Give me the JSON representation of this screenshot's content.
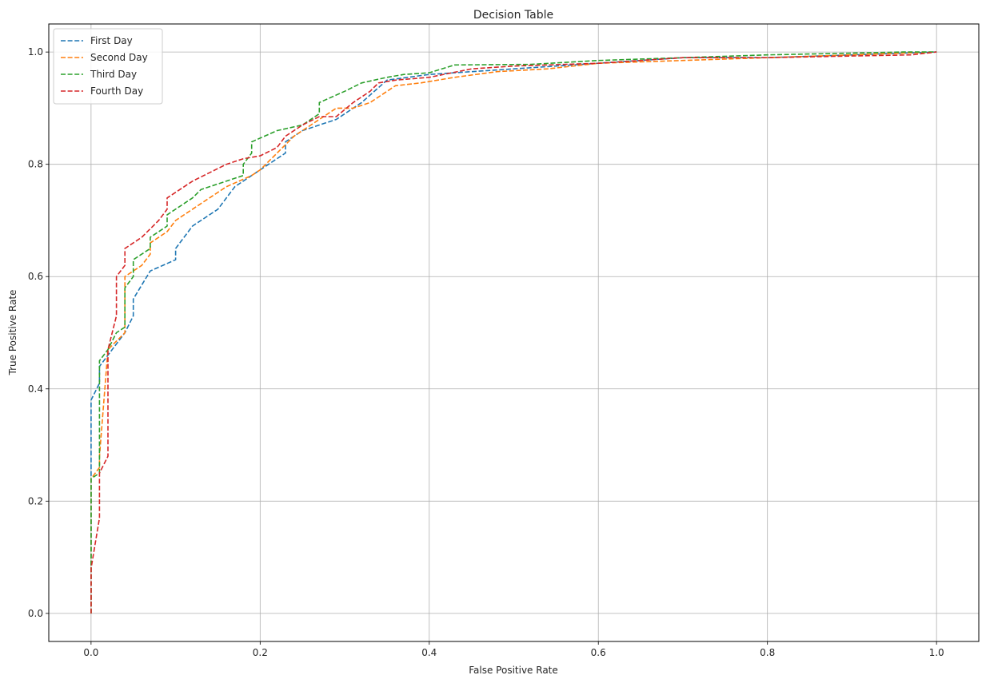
{
  "chart_data": {
    "type": "line",
    "title": "Decision Table",
    "xlabel": "False Positive Rate",
    "ylabel": "True Positive Rate",
    "xlim": [
      -0.05,
      1.05
    ],
    "ylim": [
      -0.05,
      1.05
    ],
    "x_ticks": [
      {
        "value": 0.0,
        "label": "0.0"
      },
      {
        "value": 0.2,
        "label": "0.2"
      },
      {
        "value": 0.4,
        "label": "0.4"
      },
      {
        "value": 0.6,
        "label": "0.6"
      },
      {
        "value": 0.8,
        "label": "0.8"
      },
      {
        "value": 1.0,
        "label": "1.0"
      }
    ],
    "y_ticks": [
      {
        "value": 0.0,
        "label": "0.0"
      },
      {
        "value": 0.2,
        "label": "0.2"
      },
      {
        "value": 0.4,
        "label": "0.4"
      },
      {
        "value": 0.6,
        "label": "0.6"
      },
      {
        "value": 0.8,
        "label": "0.8"
      },
      {
        "value": 1.0,
        "label": "1.0"
      }
    ],
    "grid": true,
    "line_style": "dashed",
    "legend_position": "top-left",
    "series": [
      {
        "name": "First Day",
        "color": "#1f77b4",
        "points": [
          [
            0.0,
            0.0
          ],
          [
            0.0,
            0.38
          ],
          [
            0.01,
            0.41
          ],
          [
            0.01,
            0.44
          ],
          [
            0.02,
            0.46
          ],
          [
            0.04,
            0.5
          ],
          [
            0.05,
            0.53
          ],
          [
            0.05,
            0.56
          ],
          [
            0.07,
            0.61
          ],
          [
            0.1,
            0.63
          ],
          [
            0.1,
            0.65
          ],
          [
            0.11,
            0.67
          ],
          [
            0.12,
            0.69
          ],
          [
            0.15,
            0.72
          ],
          [
            0.17,
            0.76
          ],
          [
            0.19,
            0.78
          ],
          [
            0.2,
            0.79
          ],
          [
            0.23,
            0.82
          ],
          [
            0.23,
            0.84
          ],
          [
            0.25,
            0.86
          ],
          [
            0.27,
            0.87
          ],
          [
            0.29,
            0.88
          ],
          [
            0.32,
            0.91
          ],
          [
            0.35,
            0.95
          ],
          [
            0.4,
            0.96
          ],
          [
            0.5,
            0.97
          ],
          [
            0.6,
            0.98
          ],
          [
            0.7,
            0.99
          ],
          [
            0.8,
            0.99
          ],
          [
            0.9,
            0.995
          ],
          [
            1.0,
            1.0
          ]
        ]
      },
      {
        "name": "Second Day",
        "color": "#ff7f0e",
        "points": [
          [
            0.0,
            0.0
          ],
          [
            0.0,
            0.24
          ],
          [
            0.01,
            0.26
          ],
          [
            0.01,
            0.28
          ],
          [
            0.02,
            0.47
          ],
          [
            0.04,
            0.5
          ],
          [
            0.04,
            0.6
          ],
          [
            0.06,
            0.62
          ],
          [
            0.07,
            0.64
          ],
          [
            0.07,
            0.66
          ],
          [
            0.09,
            0.68
          ],
          [
            0.1,
            0.7
          ],
          [
            0.12,
            0.72
          ],
          [
            0.14,
            0.74
          ],
          [
            0.16,
            0.76
          ],
          [
            0.19,
            0.78
          ],
          [
            0.2,
            0.79
          ],
          [
            0.22,
            0.82
          ],
          [
            0.24,
            0.85
          ],
          [
            0.26,
            0.87
          ],
          [
            0.29,
            0.9
          ],
          [
            0.31,
            0.9
          ],
          [
            0.33,
            0.91
          ],
          [
            0.36,
            0.94
          ],
          [
            0.39,
            0.945
          ],
          [
            0.43,
            0.955
          ],
          [
            0.48,
            0.965
          ],
          [
            0.54,
            0.97
          ],
          [
            0.6,
            0.98
          ],
          [
            0.7,
            0.985
          ],
          [
            0.8,
            0.99
          ],
          [
            0.9,
            0.995
          ],
          [
            1.0,
            1.0
          ]
        ]
      },
      {
        "name": "Third Day",
        "color": "#2ca02c",
        "points": [
          [
            0.0,
            0.0
          ],
          [
            0.0,
            0.1
          ],
          [
            0.0,
            0.24
          ],
          [
            0.01,
            0.25
          ],
          [
            0.01,
            0.45
          ],
          [
            0.02,
            0.47
          ],
          [
            0.03,
            0.5
          ],
          [
            0.04,
            0.51
          ],
          [
            0.04,
            0.58
          ],
          [
            0.05,
            0.6
          ],
          [
            0.05,
            0.63
          ],
          [
            0.07,
            0.65
          ],
          [
            0.07,
            0.67
          ],
          [
            0.09,
            0.69
          ],
          [
            0.09,
            0.71
          ],
          [
            0.12,
            0.74
          ],
          [
            0.13,
            0.755
          ],
          [
            0.18,
            0.78
          ],
          [
            0.18,
            0.8
          ],
          [
            0.19,
            0.82
          ],
          [
            0.19,
            0.84
          ],
          [
            0.22,
            0.86
          ],
          [
            0.25,
            0.87
          ],
          [
            0.27,
            0.89
          ],
          [
            0.27,
            0.91
          ],
          [
            0.3,
            0.93
          ],
          [
            0.32,
            0.945
          ],
          [
            0.35,
            0.955
          ],
          [
            0.37,
            0.96
          ],
          [
            0.4,
            0.963
          ],
          [
            0.43,
            0.977
          ],
          [
            0.52,
            0.978
          ],
          [
            0.6,
            0.985
          ],
          [
            0.7,
            0.99
          ],
          [
            0.8,
            0.995
          ],
          [
            0.9,
            0.998
          ],
          [
            0.96,
            1.0
          ],
          [
            1.0,
            1.0
          ]
        ]
      },
      {
        "name": "Fourth Day",
        "color": "#d62728",
        "points": [
          [
            0.0,
            0.0
          ],
          [
            0.0,
            0.08
          ],
          [
            0.01,
            0.17
          ],
          [
            0.01,
            0.25
          ],
          [
            0.02,
            0.28
          ],
          [
            0.02,
            0.47
          ],
          [
            0.03,
            0.53
          ],
          [
            0.03,
            0.6
          ],
          [
            0.04,
            0.62
          ],
          [
            0.04,
            0.65
          ],
          [
            0.06,
            0.67
          ],
          [
            0.08,
            0.7
          ],
          [
            0.09,
            0.72
          ],
          [
            0.09,
            0.74
          ],
          [
            0.12,
            0.77
          ],
          [
            0.16,
            0.8
          ],
          [
            0.18,
            0.81
          ],
          [
            0.2,
            0.815
          ],
          [
            0.22,
            0.83
          ],
          [
            0.23,
            0.85
          ],
          [
            0.25,
            0.87
          ],
          [
            0.27,
            0.885
          ],
          [
            0.29,
            0.885
          ],
          [
            0.31,
            0.91
          ],
          [
            0.33,
            0.93
          ],
          [
            0.34,
            0.945
          ],
          [
            0.36,
            0.95
          ],
          [
            0.4,
            0.955
          ],
          [
            0.45,
            0.97
          ],
          [
            0.5,
            0.975
          ],
          [
            0.6,
            0.98
          ],
          [
            0.7,
            0.99
          ],
          [
            0.8,
            0.99
          ],
          [
            0.9,
            0.993
          ],
          [
            0.97,
            0.995
          ],
          [
            1.0,
            1.0
          ]
        ]
      }
    ]
  }
}
